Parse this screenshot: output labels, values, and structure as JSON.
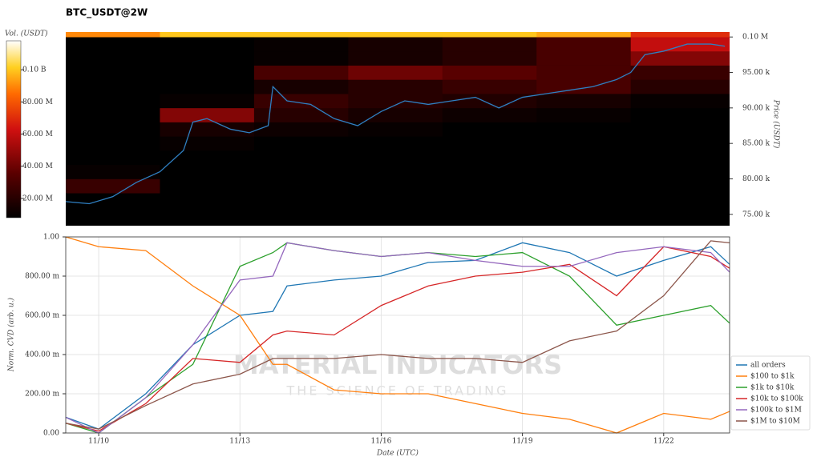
{
  "chart_data": [
    {
      "type": "heatmap",
      "title": "BTC_USDT@2W",
      "colorbar_label": "Vol. (USDT)",
      "y_label": "Price (USDT)",
      "xlim": [
        9.3,
        23.4
      ],
      "ylim": [
        73400,
        100700
      ],
      "yticks": [
        {
          "value": 75000,
          "label": "75.00 k"
        },
        {
          "value": 80000,
          "label": "80.00 k"
        },
        {
          "value": 85000,
          "label": "85.00 k"
        },
        {
          "value": 90000,
          "label": "90.00 k"
        },
        {
          "value": 95000,
          "label": "95.00 k"
        },
        {
          "value": 100000,
          "label": "0.10 M"
        }
      ],
      "clim": [
        8000000,
        118000000
      ],
      "cticks": [
        {
          "value": 20000000,
          "label": "20.00 M"
        },
        {
          "value": 40000000,
          "label": "40.00 M"
        },
        {
          "value": 60000000,
          "label": "60.00 M"
        },
        {
          "value": 80000000,
          "label": "80.00 M"
        },
        {
          "value": 100000000,
          "label": "0.10 B"
        }
      ],
      "x_bins": [
        9.3,
        11.3,
        13.3,
        15.3,
        17.3,
        19.3,
        21.3,
        23.4
      ],
      "price_bins": [
        74000,
        76000,
        78000,
        80000,
        82000,
        84000,
        86000,
        88000,
        90000,
        92000,
        94000,
        96000,
        98000,
        100000,
        102000
      ],
      "z": [
        [
          3000000,
          2000000,
          1000000,
          1000000,
          1000000,
          1000000,
          1000000
        ],
        [
          8000000,
          3000000,
          2000000,
          1000000,
          1000000,
          1000000,
          1000000
        ],
        [
          25000000,
          5000000,
          3000000,
          2000000,
          2000000,
          2000000,
          2000000
        ],
        [
          10000000,
          6000000,
          3000000,
          3000000,
          2000000,
          2000000,
          2000000
        ],
        [
          5000000,
          8000000,
          4000000,
          3000000,
          3000000,
          3000000,
          3000000
        ],
        [
          2000000,
          10000000,
          8000000,
          6000000,
          5000000,
          5000000,
          4000000
        ],
        [
          1000000,
          15000000,
          12000000,
          10000000,
          8000000,
          8000000,
          6000000
        ],
        [
          1000000,
          45000000,
          20000000,
          15000000,
          12000000,
          10000000,
          8000000
        ],
        [
          1000000,
          10000000,
          25000000,
          20000000,
          18000000,
          15000000,
          10000000
        ],
        [
          1000000,
          5000000,
          15000000,
          20000000,
          25000000,
          30000000,
          20000000
        ],
        [
          1000000,
          3000000,
          30000000,
          40000000,
          35000000,
          30000000,
          25000000
        ],
        [
          1000000,
          2000000,
          10000000,
          15000000,
          20000000,
          30000000,
          45000000
        ],
        [
          1000000,
          2000000,
          10000000,
          15000000,
          20000000,
          30000000,
          60000000
        ],
        [
          90000000,
          100000000,
          100000000,
          100000000,
          100000000,
          95000000,
          70000000
        ]
      ],
      "line": {
        "color": "#2f7fc1",
        "x": [
          9.3,
          9.8,
          10.3,
          10.8,
          11.3,
          11.8,
          12.0,
          12.3,
          12.8,
          13.2,
          13.6,
          13.7,
          14.0,
          14.5,
          15.0,
          15.5,
          16.0,
          16.5,
          17.0,
          17.5,
          18.0,
          18.5,
          19.0,
          19.5,
          20.0,
          20.5,
          21.0,
          21.3,
          21.6,
          22.0,
          22.5,
          23.0,
          23.3
        ],
        "values": [
          76800,
          76500,
          77500,
          79500,
          81000,
          84000,
          88000,
          88500,
          87000,
          86500,
          87500,
          93000,
          91000,
          90500,
          88500,
          87500,
          89500,
          91000,
          90500,
          91000,
          91500,
          90000,
          91500,
          92000,
          92500,
          93000,
          94000,
          95000,
          97500,
          98000,
          99000,
          99000,
          98700
        ]
      }
    },
    {
      "type": "line",
      "x_label": "Date (UTC)",
      "y_label": "Norm. CVD (arb. u.)",
      "xlim": [
        9.3,
        23.4
      ],
      "xticks": [
        {
          "value": 10,
          "label": "11/10"
        },
        {
          "value": 13,
          "label": "11/13"
        },
        {
          "value": 16,
          "label": "11/16"
        },
        {
          "value": 19,
          "label": "11/19"
        },
        {
          "value": 22,
          "label": "11/22"
        }
      ],
      "ylim": [
        0,
        1
      ],
      "yticks": [
        {
          "value": 0,
          "label": "0.00"
        },
        {
          "value": 0.2,
          "label": "200.00 m"
        },
        {
          "value": 0.4,
          "label": "400.00 m"
        },
        {
          "value": 0.6,
          "label": "600.00 m"
        },
        {
          "value": 0.8,
          "label": "800.00 m"
        },
        {
          "value": 1,
          "label": "1.00"
        }
      ],
      "grid": true,
      "legend": "lower right",
      "watermark": [
        "MATERIAL INDICATORS",
        "THE SCIENCE OF TRADING"
      ],
      "x": [
        9.3,
        10,
        11,
        12,
        13,
        13.7,
        14,
        15,
        16,
        17,
        18,
        19,
        20,
        21,
        22,
        23,
        23.4
      ],
      "series": [
        {
          "name": "all orders",
          "color": "#1f77b4",
          "values": [
            0.08,
            0.02,
            0.2,
            0.45,
            0.6,
            0.62,
            0.75,
            0.78,
            0.8,
            0.87,
            0.88,
            0.97,
            0.92,
            0.8,
            0.88,
            0.95,
            0.86
          ]
        },
        {
          "name": "$100 to $1k",
          "color": "#ff7f0e",
          "values": [
            1.0,
            0.95,
            0.93,
            0.75,
            0.6,
            0.35,
            0.35,
            0.22,
            0.2,
            0.2,
            0.15,
            0.1,
            0.07,
            0.0,
            0.1,
            0.07,
            0.11
          ]
        },
        {
          "name": "$1k to $10k",
          "color": "#2ca02c",
          "values": [
            0.05,
            0.0,
            0.18,
            0.35,
            0.85,
            0.92,
            0.97,
            0.93,
            0.9,
            0.92,
            0.9,
            0.92,
            0.8,
            0.55,
            0.6,
            0.65,
            0.56
          ]
        },
        {
          "name": "$10k to $100k",
          "color": "#d62728",
          "values": [
            0.05,
            0.01,
            0.15,
            0.38,
            0.36,
            0.5,
            0.52,
            0.5,
            0.65,
            0.75,
            0.8,
            0.82,
            0.86,
            0.7,
            0.95,
            0.9,
            0.84
          ]
        },
        {
          "name": "$100k to $1M",
          "color": "#9467bd",
          "values": [
            0.08,
            0.0,
            0.18,
            0.45,
            0.78,
            0.8,
            0.97,
            0.93,
            0.9,
            0.92,
            0.88,
            0.85,
            0.85,
            0.92,
            0.95,
            0.92,
            0.82
          ]
        },
        {
          "name": "$1M to $10M",
          "color": "#8c564b",
          "values": [
            0.05,
            0.02,
            0.14,
            0.25,
            0.3,
            0.38,
            0.38,
            0.38,
            0.4,
            0.38,
            0.38,
            0.36,
            0.47,
            0.52,
            0.7,
            0.98,
            0.97
          ]
        }
      ]
    }
  ]
}
